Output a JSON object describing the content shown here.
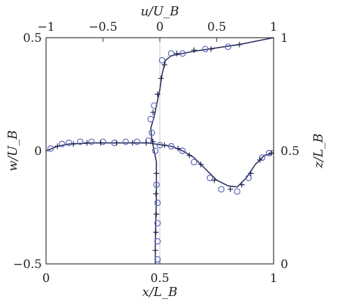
{
  "chart_data": {
    "type": "line",
    "title": "",
    "grid": false,
    "axes": {
      "bottom": {
        "label": "x/L_B",
        "range": [
          0,
          1
        ],
        "ticks": [
          "0",
          "0.5",
          "1"
        ]
      },
      "left": {
        "label": "w/U_B",
        "range": [
          -0.5,
          0.5
        ],
        "ticks": [
          "−0.5",
          "0",
          "0.5"
        ]
      },
      "top": {
        "label": "u/U_B",
        "range": [
          -1,
          1
        ],
        "ticks": [
          "−1",
          "−0.5",
          "0",
          "0.5",
          "1"
        ]
      },
      "right": {
        "label": "z/L_B",
        "range": [
          0,
          1
        ],
        "ticks": [
          "0",
          "0.5",
          "1"
        ]
      }
    },
    "series": [
      {
        "id": "u_profile",
        "axes": "u/U_B vs z/L_B",
        "color": "#2a2f5a",
        "line": [
          [
            -0.04,
            0.0
          ],
          [
            -0.04,
            0.1
          ],
          [
            -0.035,
            0.2
          ],
          [
            -0.03,
            0.3
          ],
          [
            -0.03,
            0.4
          ],
          [
            -0.03,
            0.45
          ],
          [
            -0.05,
            0.5
          ],
          [
            -0.07,
            0.55
          ],
          [
            -0.08,
            0.6
          ],
          [
            -0.05,
            0.65
          ],
          [
            -0.03,
            0.7
          ],
          [
            0.0,
            0.77
          ],
          [
            0.02,
            0.84
          ],
          [
            0.05,
            0.9
          ],
          [
            0.1,
            0.92
          ],
          [
            0.3,
            0.94
          ],
          [
            0.5,
            0.955
          ],
          [
            0.7,
            0.97
          ],
          [
            1.0,
            1.0
          ]
        ],
        "circles": [
          [
            -0.02,
            0.02
          ],
          [
            -0.02,
            0.1
          ],
          [
            -0.02,
            0.18
          ],
          [
            -0.02,
            0.27
          ],
          [
            -0.03,
            0.35
          ],
          [
            -0.04,
            0.5
          ],
          [
            -0.07,
            0.58
          ],
          [
            -0.08,
            0.64
          ],
          [
            -0.05,
            0.7
          ],
          [
            0.02,
            0.9
          ],
          [
            0.1,
            0.93
          ],
          [
            0.2,
            0.93
          ],
          [
            0.4,
            0.95
          ],
          [
            0.6,
            0.96
          ]
        ],
        "crosses": [
          [
            -0.04,
            0.06
          ],
          [
            -0.035,
            0.14
          ],
          [
            -0.03,
            0.22
          ],
          [
            -0.035,
            0.31
          ],
          [
            -0.03,
            0.4
          ],
          [
            -0.06,
            0.54
          ],
          [
            -0.06,
            0.67
          ],
          [
            -0.02,
            0.75
          ],
          [
            0.01,
            0.82
          ],
          [
            0.04,
            0.88
          ],
          [
            0.15,
            0.93
          ],
          [
            0.3,
            0.945
          ],
          [
            0.45,
            0.95
          ],
          [
            0.7,
            0.97
          ]
        ]
      },
      {
        "id": "w_profile",
        "axes": "x/L_B vs w/U_B",
        "color": "#2a2f5a",
        "line": [
          [
            0.0,
            0.0
          ],
          [
            0.05,
            0.02
          ],
          [
            0.1,
            0.03
          ],
          [
            0.2,
            0.035
          ],
          [
            0.3,
            0.035
          ],
          [
            0.4,
            0.035
          ],
          [
            0.45,
            0.035
          ],
          [
            0.48,
            0.03
          ],
          [
            0.55,
            0.02
          ],
          [
            0.6,
            0.0
          ],
          [
            0.65,
            -0.03
          ],
          [
            0.7,
            -0.08
          ],
          [
            0.75,
            -0.13
          ],
          [
            0.8,
            -0.155
          ],
          [
            0.84,
            -0.16
          ],
          [
            0.88,
            -0.12
          ],
          [
            0.92,
            -0.06
          ],
          [
            0.96,
            -0.02
          ],
          [
            1.0,
            -0.01
          ]
        ],
        "circles": [
          [
            0.02,
            0.01
          ],
          [
            0.07,
            0.03
          ],
          [
            0.1,
            0.035
          ],
          [
            0.15,
            0.04
          ],
          [
            0.2,
            0.04
          ],
          [
            0.25,
            0.04
          ],
          [
            0.3,
            0.035
          ],
          [
            0.35,
            0.04
          ],
          [
            0.4,
            0.04
          ],
          [
            0.45,
            0.045
          ],
          [
            0.5,
            0.025
          ],
          [
            0.55,
            0.02
          ],
          [
            0.6,
            0.0
          ],
          [
            0.65,
            -0.05
          ],
          [
            0.72,
            -0.12
          ],
          [
            0.77,
            -0.17
          ],
          [
            0.84,
            -0.18
          ],
          [
            0.89,
            -0.12
          ],
          [
            0.95,
            -0.03
          ],
          [
            0.98,
            -0.01
          ]
        ],
        "crosses": [
          [
            0.05,
            0.02
          ],
          [
            0.12,
            0.03
          ],
          [
            0.18,
            0.035
          ],
          [
            0.24,
            0.035
          ],
          [
            0.31,
            0.035
          ],
          [
            0.38,
            0.035
          ],
          [
            0.44,
            0.035
          ],
          [
            0.52,
            0.025
          ],
          [
            0.58,
            0.01
          ],
          [
            0.63,
            -0.02
          ],
          [
            0.68,
            -0.06
          ],
          [
            0.74,
            -0.13
          ],
          [
            0.81,
            -0.17
          ],
          [
            0.86,
            -0.15
          ],
          [
            0.9,
            -0.1
          ],
          [
            0.94,
            -0.04
          ],
          [
            0.99,
            -0.01
          ]
        ]
      }
    ]
  }
}
